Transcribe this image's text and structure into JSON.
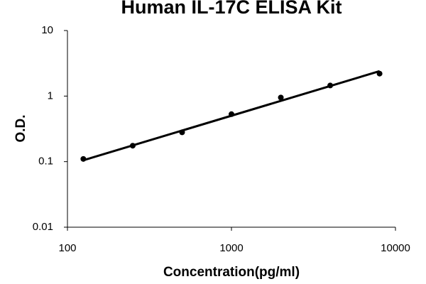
{
  "chart_data": {
    "type": "scatter",
    "title": "Human IL-17C ELISA Kit",
    "x_label": "Concentration(pg/ml)",
    "y_label": "O.D.",
    "x": [
      125,
      250,
      500,
      1000,
      2000,
      4000,
      8000
    ],
    "values": [
      0.11,
      0.175,
      0.28,
      0.53,
      0.95,
      1.45,
      2.2
    ],
    "color": "#000000",
    "fit": {
      "x": [
        125,
        8000
      ],
      "values": [
        0.105,
        2.4
      ]
    },
    "x_log": true,
    "y_log": true,
    "xlim": [
      100,
      10000
    ],
    "xticks": [
      100,
      1000,
      10000
    ],
    "ylim": [
      0.01,
      10
    ],
    "yticks": [
      0.01,
      0.1,
      1,
      10
    ]
  }
}
